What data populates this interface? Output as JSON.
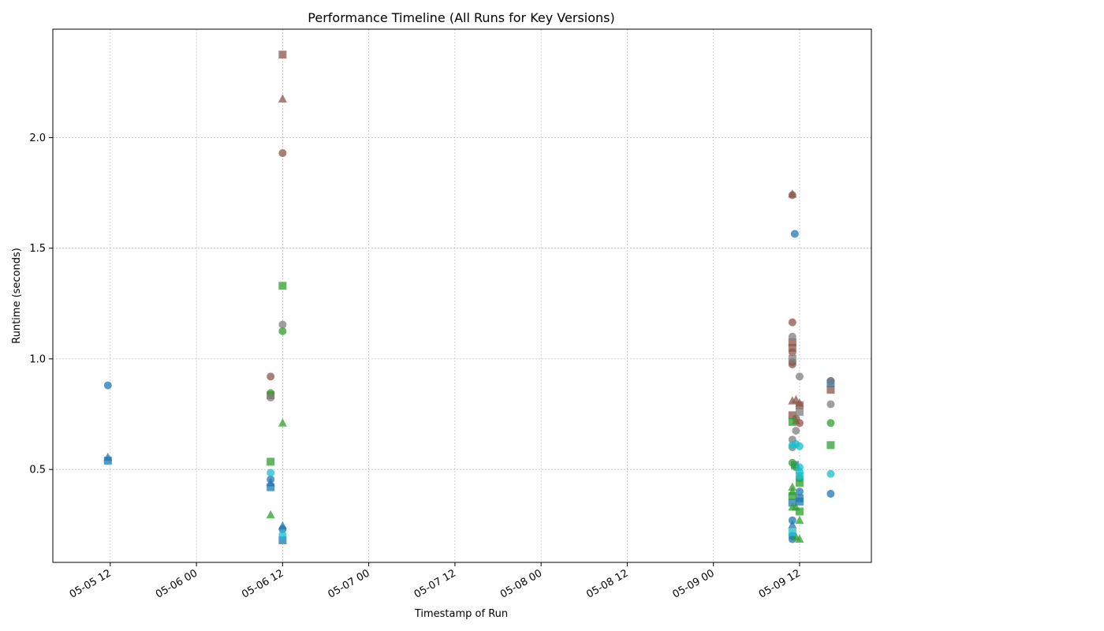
{
  "chart_data": {
    "type": "scatter",
    "title": "Performance Timeline (All Runs for Key Versions)",
    "xlabel": "Timestamp of Run",
    "ylabel": "Runtime (seconds)",
    "x_axis_kind": "datetime",
    "xlim": [
      "2025-05-05 04:00",
      "2025-05-09 22:00"
    ],
    "ylim": [
      0.08,
      2.49
    ],
    "grid": true,
    "x_ticks": [
      {
        "t": "2025-05-05 12:00",
        "label": "05-05 12"
      },
      {
        "t": "2025-05-06 00:00",
        "label": "05-06 00"
      },
      {
        "t": "2025-05-06 12:00",
        "label": "05-06 12"
      },
      {
        "t": "2025-05-07 00:00",
        "label": "05-07 00"
      },
      {
        "t": "2025-05-07 12:00",
        "label": "05-07 12"
      },
      {
        "t": "2025-05-08 00:00",
        "label": "05-08 00"
      },
      {
        "t": "2025-05-08 12:00",
        "label": "05-08 12"
      },
      {
        "t": "2025-05-09 00:00",
        "label": "05-09 00"
      },
      {
        "t": "2025-05-09 12:00",
        "label": "05-09 12"
      }
    ],
    "y_ticks": [
      0.5,
      1.0,
      1.5,
      2.0
    ],
    "y_tick_labels": [
      "0.5",
      "1.0",
      "1.5",
      "2.0"
    ],
    "series": [
      {
        "color": "#1f77b4",
        "points": [
          {
            "x": "2025-05-05 11:40",
            "y": 0.88,
            "m": "circle"
          },
          {
            "x": "2025-05-05 11:40",
            "y": 0.555,
            "m": "triangle"
          },
          {
            "x": "2025-05-05 11:40",
            "y": 0.54,
            "m": "square"
          },
          {
            "x": "2025-05-06 10:20",
            "y": 0.455,
            "m": "circle"
          },
          {
            "x": "2025-05-06 10:20",
            "y": 0.44,
            "m": "triangle"
          },
          {
            "x": "2025-05-06 10:20",
            "y": 0.42,
            "m": "square"
          },
          {
            "x": "2025-05-06 12:00",
            "y": 0.245,
            "m": "triangle"
          },
          {
            "x": "2025-05-06 12:00",
            "y": 0.23,
            "m": "circle"
          },
          {
            "x": "2025-05-06 12:00",
            "y": 0.18,
            "m": "square"
          },
          {
            "x": "2025-05-09 11:20",
            "y": 1.565,
            "m": "circle"
          },
          {
            "x": "2025-05-09 11:20",
            "y": 0.52,
            "m": "square"
          },
          {
            "x": "2025-05-09 11:00",
            "y": 0.35,
            "m": "square"
          },
          {
            "x": "2025-05-09 11:00",
            "y": 0.27,
            "m": "circle"
          },
          {
            "x": "2025-05-09 11:00",
            "y": 0.25,
            "m": "triangle"
          },
          {
            "x": "2025-05-09 11:00",
            "y": 0.2,
            "m": "circle"
          },
          {
            "x": "2025-05-09 11:00",
            "y": 0.185,
            "m": "circle"
          },
          {
            "x": "2025-05-09 12:00",
            "y": 0.4,
            "m": "circle"
          },
          {
            "x": "2025-05-09 12:00",
            "y": 0.37,
            "m": "square"
          },
          {
            "x": "2025-05-09 12:00",
            "y": 0.355,
            "m": "square"
          },
          {
            "x": "2025-05-09 16:20",
            "y": 0.9,
            "m": "circle"
          },
          {
            "x": "2025-05-09 16:20",
            "y": 0.89,
            "m": "square"
          },
          {
            "x": "2025-05-09 16:20",
            "y": 0.39,
            "m": "circle"
          }
        ]
      },
      {
        "color": "#8c564b",
        "points": [
          {
            "x": "2025-05-06 12:00",
            "y": 2.375,
            "m": "square"
          },
          {
            "x": "2025-05-06 12:00",
            "y": 2.175,
            "m": "triangle"
          },
          {
            "x": "2025-05-06 12:00",
            "y": 1.93,
            "m": "circle"
          },
          {
            "x": "2025-05-06 10:20",
            "y": 0.92,
            "m": "circle"
          },
          {
            "x": "2025-05-06 10:20",
            "y": 0.835,
            "m": "square"
          },
          {
            "x": "2025-05-09 11:00",
            "y": 1.745,
            "m": "triangle"
          },
          {
            "x": "2025-05-09 11:00",
            "y": 1.74,
            "m": "circle"
          },
          {
            "x": "2025-05-09 11:00",
            "y": 1.165,
            "m": "circle"
          },
          {
            "x": "2025-05-09 11:00",
            "y": 1.075,
            "m": "square"
          },
          {
            "x": "2025-05-09 11:00",
            "y": 1.05,
            "m": "square"
          },
          {
            "x": "2025-05-09 11:00",
            "y": 1.03,
            "m": "circle"
          },
          {
            "x": "2025-05-09 11:00",
            "y": 0.985,
            "m": "circle"
          },
          {
            "x": "2025-05-09 11:00",
            "y": 0.975,
            "m": "circle"
          },
          {
            "x": "2025-05-09 11:00",
            "y": 0.81,
            "m": "triangle"
          },
          {
            "x": "2025-05-09 11:00",
            "y": 0.745,
            "m": "square"
          },
          {
            "x": "2025-05-09 11:30",
            "y": 0.815,
            "m": "triangle"
          },
          {
            "x": "2025-05-09 11:30",
            "y": 0.73,
            "m": "circle"
          },
          {
            "x": "2025-05-09 11:30",
            "y": 0.72,
            "m": "triangle"
          },
          {
            "x": "2025-05-09 12:00",
            "y": 0.8,
            "m": "triangle"
          },
          {
            "x": "2025-05-09 12:00",
            "y": 0.79,
            "m": "square"
          },
          {
            "x": "2025-05-09 12:00",
            "y": 0.71,
            "m": "circle"
          },
          {
            "x": "2025-05-09 16:20",
            "y": 0.86,
            "m": "square"
          }
        ]
      },
      {
        "color": "#2ca02c",
        "points": [
          {
            "x": "2025-05-06 12:00",
            "y": 1.33,
            "m": "square"
          },
          {
            "x": "2025-05-06 12:00",
            "y": 1.125,
            "m": "circle"
          },
          {
            "x": "2025-05-06 12:00",
            "y": 0.71,
            "m": "triangle"
          },
          {
            "x": "2025-05-06 10:20",
            "y": 0.845,
            "m": "circle"
          },
          {
            "x": "2025-05-06 10:20",
            "y": 0.535,
            "m": "square"
          },
          {
            "x": "2025-05-06 10:20",
            "y": 0.295,
            "m": "triangle"
          },
          {
            "x": "2025-05-09 11:00",
            "y": 0.715,
            "m": "square"
          },
          {
            "x": "2025-05-09 11:00",
            "y": 0.53,
            "m": "circle"
          },
          {
            "x": "2025-05-09 11:00",
            "y": 0.42,
            "m": "triangle"
          },
          {
            "x": "2025-05-09 11:00",
            "y": 0.4,
            "m": "triangle"
          },
          {
            "x": "2025-05-09 11:00",
            "y": 0.38,
            "m": "square"
          },
          {
            "x": "2025-05-09 11:00",
            "y": 0.33,
            "m": "triangle"
          },
          {
            "x": "2025-05-09 11:30",
            "y": 0.51,
            "m": "circle"
          },
          {
            "x": "2025-05-09 11:30",
            "y": 0.33,
            "m": "triangle"
          },
          {
            "x": "2025-05-09 11:30",
            "y": 0.195,
            "m": "triangle"
          },
          {
            "x": "2025-05-09 12:00",
            "y": 0.46,
            "m": "circle"
          },
          {
            "x": "2025-05-09 12:00",
            "y": 0.44,
            "m": "square"
          },
          {
            "x": "2025-05-09 12:00",
            "y": 0.31,
            "m": "square"
          },
          {
            "x": "2025-05-09 12:00",
            "y": 0.27,
            "m": "triangle"
          },
          {
            "x": "2025-05-09 12:00",
            "y": 0.185,
            "m": "triangle"
          },
          {
            "x": "2025-05-09 16:20",
            "y": 0.71,
            "m": "circle"
          },
          {
            "x": "2025-05-09 16:20",
            "y": 0.61,
            "m": "square"
          }
        ]
      },
      {
        "color": "#7f7f7f",
        "points": [
          {
            "x": "2025-05-06 10:20",
            "y": 0.825,
            "m": "circle"
          },
          {
            "x": "2025-05-06 12:00",
            "y": 1.155,
            "m": "circle"
          },
          {
            "x": "2025-05-09 11:00",
            "y": 1.1,
            "m": "circle"
          },
          {
            "x": "2025-05-09 11:00",
            "y": 1.0,
            "m": "square"
          },
          {
            "x": "2025-05-09 11:00",
            "y": 0.635,
            "m": "circle"
          },
          {
            "x": "2025-05-09 11:00",
            "y": 0.6,
            "m": "circle"
          },
          {
            "x": "2025-05-09 11:30",
            "y": 0.675,
            "m": "circle"
          },
          {
            "x": "2025-05-09 12:00",
            "y": 0.92,
            "m": "circle"
          },
          {
            "x": "2025-05-09 12:00",
            "y": 0.76,
            "m": "square"
          },
          {
            "x": "2025-05-09 16:20",
            "y": 0.9,
            "m": "circle"
          },
          {
            "x": "2025-05-09 16:20",
            "y": 0.795,
            "m": "circle"
          }
        ]
      },
      {
        "color": "#17becf",
        "points": [
          {
            "x": "2025-05-06 10:20",
            "y": 0.485,
            "m": "circle"
          },
          {
            "x": "2025-05-06 12:00",
            "y": 0.205,
            "m": "circle"
          },
          {
            "x": "2025-05-09 11:00",
            "y": 0.61,
            "m": "circle"
          },
          {
            "x": "2025-05-09 11:00",
            "y": 0.215,
            "m": "square"
          },
          {
            "x": "2025-05-09 11:30",
            "y": 0.615,
            "m": "circle"
          },
          {
            "x": "2025-05-09 12:00",
            "y": 0.605,
            "m": "circle"
          },
          {
            "x": "2025-05-09 12:00",
            "y": 0.51,
            "m": "circle"
          },
          {
            "x": "2025-05-09 12:00",
            "y": 0.49,
            "m": "circle"
          },
          {
            "x": "2025-05-09 12:00",
            "y": 0.47,
            "m": "square"
          },
          {
            "x": "2025-05-09 16:20",
            "y": 0.48,
            "m": "circle"
          }
        ]
      }
    ]
  }
}
